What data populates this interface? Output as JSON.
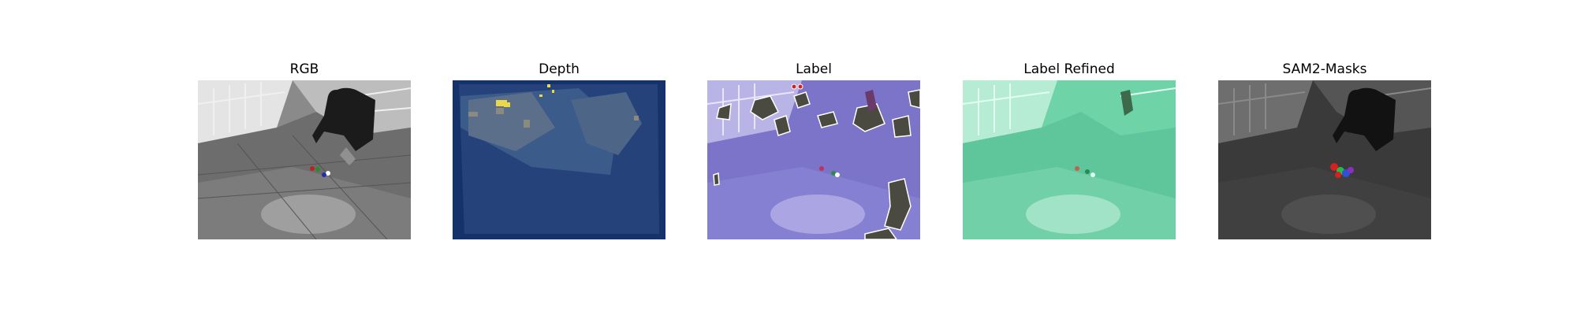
{
  "figure": {
    "panels": [
      {
        "id": "rgb",
        "title": "RGB"
      },
      {
        "id": "depth",
        "title": "Depth"
      },
      {
        "id": "label",
        "title": "Label"
      },
      {
        "id": "label_refined",
        "title": "Label Refined"
      },
      {
        "id": "sam2_masks",
        "title": "SAM2-Masks"
      }
    ]
  },
  "colors": {
    "depth_background": "#0b2a5c",
    "depth_yellow": "#e8d84a",
    "label_purple": "#7b74c9",
    "label_refined_green": "#6fd3a8",
    "mask_red": "#d42020",
    "mask_green": "#2bb84a",
    "mask_blue": "#3050d8"
  }
}
